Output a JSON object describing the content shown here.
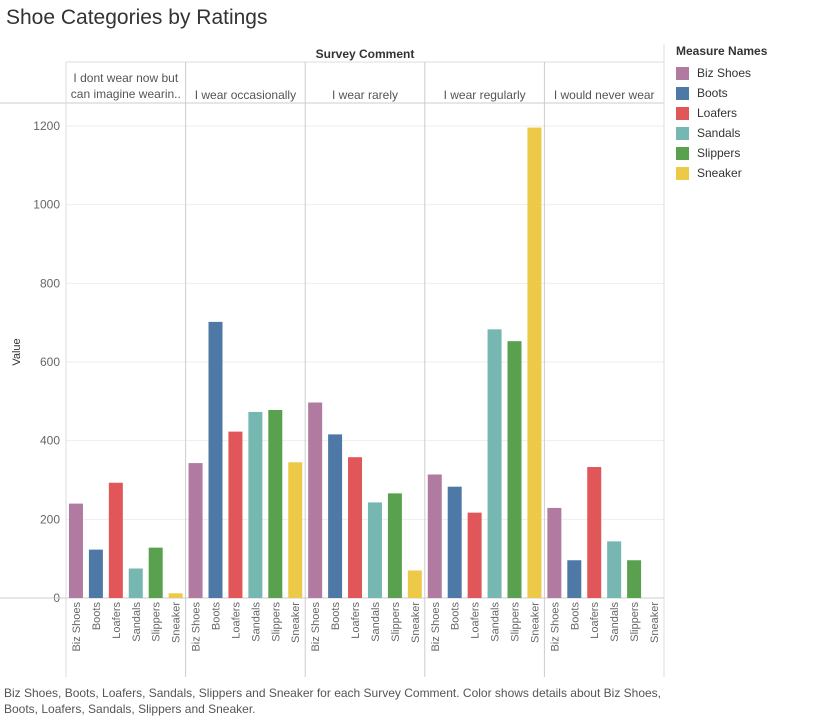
{
  "title": "Shoe Categories by Ratings",
  "caption": "Biz Shoes, Boots, Loafers, Sandals, Slippers and Sneaker for each Survey Comment.  Color shows details about Biz Shoes, Boots, Loafers, Sandals, Slippers and Sneaker.",
  "legend": {
    "title": "Measure Names",
    "items": [
      {
        "label": "Biz Shoes",
        "color": "#B07AA1"
      },
      {
        "label": "Boots",
        "color": "#4E79A7"
      },
      {
        "label": "Loafers",
        "color": "#E15759"
      },
      {
        "label": "Sandals",
        "color": "#76B7B2"
      },
      {
        "label": "Slippers",
        "color": "#59A14F"
      },
      {
        "label": "Sneaker",
        "color": "#EDC948"
      }
    ]
  },
  "chart_data": {
    "type": "bar",
    "title": "Shoe Categories by Ratings",
    "column_header": "Survey Comment",
    "ylabel": "Value",
    "ylim": [
      0,
      1200
    ],
    "yticks": [
      0,
      200,
      400,
      600,
      800,
      1000,
      1200
    ],
    "grid": true,
    "legend_placement": "right",
    "categories": [
      "Biz Shoes",
      "Boots",
      "Loafers",
      "Sandals",
      "Slippers",
      "Sneaker"
    ],
    "groups": [
      {
        "label_lines": [
          "I dont wear now but",
          "can imagine wearin.."
        ],
        "values": [
          240,
          123,
          293,
          75,
          128,
          12
        ]
      },
      {
        "label_lines": [
          "I wear occasionally"
        ],
        "values": [
          343,
          702,
          423,
          473,
          478,
          345
        ]
      },
      {
        "label_lines": [
          "I wear rarely"
        ],
        "values": [
          497,
          416,
          358,
          243,
          266,
          70
        ]
      },
      {
        "label_lines": [
          "I wear regularly"
        ],
        "values": [
          314,
          283,
          217,
          683,
          653,
          1196
        ]
      },
      {
        "label_lines": [
          "I would never wear"
        ],
        "values": [
          229,
          96,
          333,
          144,
          96,
          0
        ]
      }
    ]
  }
}
